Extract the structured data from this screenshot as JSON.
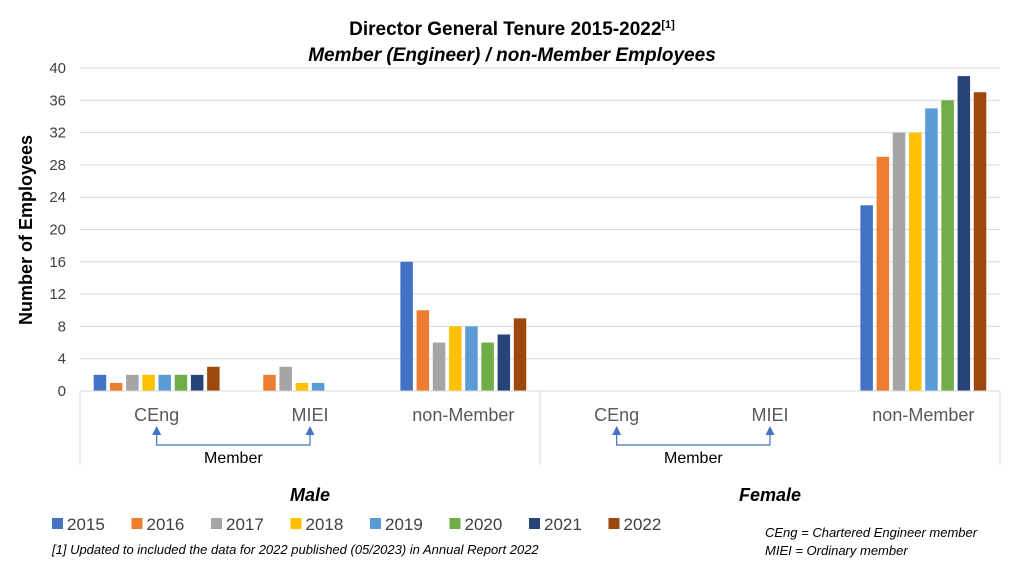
{
  "chart_data": {
    "type": "bar",
    "title": "Director General Tenure 2015-2022",
    "title_superscript": "[1]",
    "subtitle": "Member (Engineer) / non-Member Employees",
    "ylabel": "Number of Employees",
    "ylim": [
      0,
      40
    ],
    "yticks": [
      0,
      4,
      8,
      12,
      16,
      20,
      24,
      28,
      32,
      36,
      40
    ],
    "grid": true,
    "legend_position": "bottom-left",
    "groups": [
      {
        "label": "Male",
        "categories": [
          "CEng",
          "MIEI",
          "non-Member"
        ],
        "member_label": "Member"
      },
      {
        "label": "Female",
        "categories": [
          "CEng",
          "MIEI",
          "non-Member"
        ],
        "member_label": "Member"
      }
    ],
    "categories": [
      "Male CEng",
      "Male MIEI",
      "Male non-Member",
      "Female CEng",
      "Female MIEI",
      "Female non-Member"
    ],
    "series": [
      {
        "name": "2015",
        "color": "#4472c4",
        "values": [
          2,
          0,
          16,
          0,
          0,
          23
        ]
      },
      {
        "name": "2016",
        "color": "#ed7d31",
        "values": [
          1,
          2,
          10,
          0,
          0,
          29
        ]
      },
      {
        "name": "2017",
        "color": "#a5a5a5",
        "values": [
          2,
          3,
          6,
          0,
          0,
          32
        ]
      },
      {
        "name": "2018",
        "color": "#ffc000",
        "values": [
          2,
          1,
          8,
          0,
          0,
          32
        ]
      },
      {
        "name": "2019",
        "color": "#5b9bd5",
        "values": [
          2,
          1,
          8,
          0,
          0,
          35
        ]
      },
      {
        "name": "2020",
        "color": "#70ad47",
        "values": [
          2,
          0,
          6,
          0,
          0,
          36
        ]
      },
      {
        "name": "2021",
        "color": "#264478",
        "values": [
          2,
          0,
          7,
          0,
          0,
          39
        ]
      },
      {
        "name": "2022",
        "color": "#9e480e",
        "values": [
          3,
          0,
          9,
          0,
          0,
          37
        ]
      }
    ],
    "footnote": "[1] Updated to included the data for 2022 published (05/2023) in Annual Report 2022",
    "abbreviations": [
      "CEng = Chartered Engineer member",
      "MIEI = Ordinary member"
    ]
  }
}
